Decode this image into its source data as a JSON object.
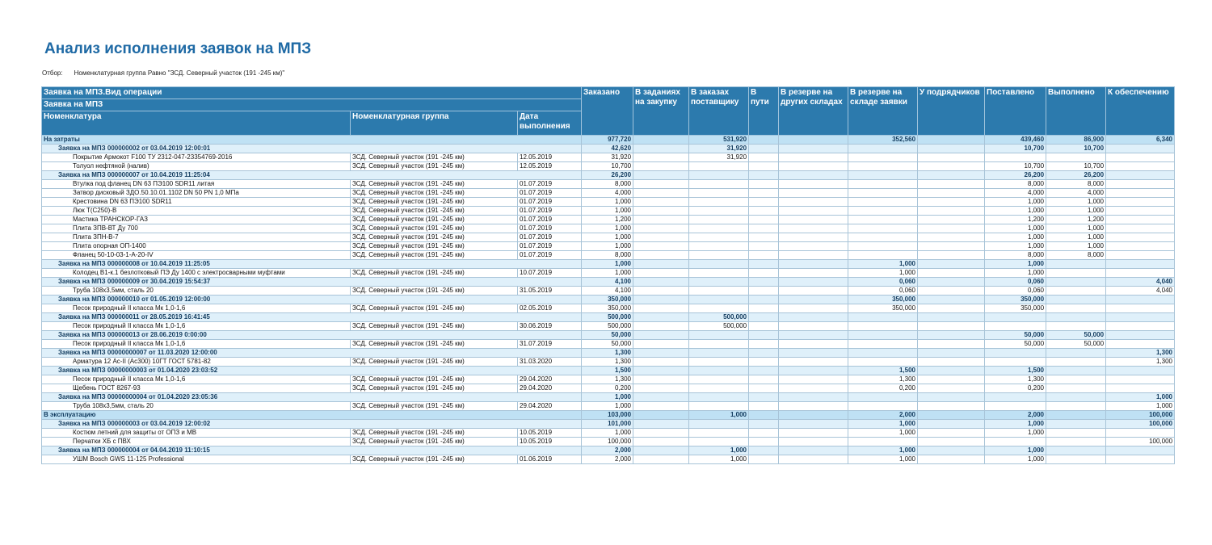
{
  "header": {
    "title": "Анализ исполнения заявок на МПЗ",
    "filter_label": "Отбор:",
    "filter_value": "Номенклатурная группа Равно \"ЗСД. Северный участок (191 -245 км)\""
  },
  "table": {
    "header": {
      "operation": "Заявка на МПЗ.Вид операции",
      "request": "Заявка на МПЗ",
      "columns": [
        "Номенклатура",
        "Номенклатурная группа",
        "Дата выполнения",
        "Заказано",
        "В заданиях на закупку",
        "В заказах поставщику",
        "В пути",
        "В резерве на других складах",
        "В резерве на складе заявки",
        "У подрядчиков",
        "Поставлено",
        "Выполнено",
        "К обеспечению"
      ]
    },
    "rows": [
      {
        "level": 0,
        "cells": [
          "На затраты",
          null,
          null,
          "977,720",
          null,
          "531,920",
          null,
          null,
          "352,560",
          null,
          "439,460",
          "86,900",
          "6,340"
        ]
      },
      {
        "level": 1,
        "cells": [
          "Заявка на МПЗ 000000002 от 03.04.2019 12:00:01",
          null,
          null,
          "42,620",
          null,
          "31,920",
          null,
          null,
          null,
          null,
          "10,700",
          "10,700",
          null
        ]
      },
      {
        "level": 2,
        "cells": [
          "Покрытие Армокот F100 ТУ 2312-047-23354769-2016",
          "ЗСД. Северный участок (191 -245 км)",
          "12.05.2019",
          "31,920",
          null,
          "31,920",
          null,
          null,
          null,
          null,
          null,
          null,
          null
        ]
      },
      {
        "level": 2,
        "cells": [
          "Толуол нефтяной (налив)",
          "ЗСД. Северный участок (191 -245 км)",
          "12.05.2019",
          "10,700",
          null,
          null,
          null,
          null,
          null,
          null,
          "10,700",
          "10,700",
          null
        ]
      },
      {
        "level": 1,
        "cells": [
          "Заявка на МПЗ 000000007 от 10.04.2019 11:25:04",
          null,
          null,
          "26,200",
          null,
          null,
          null,
          null,
          null,
          null,
          "26,200",
          "26,200",
          null
        ]
      },
      {
        "level": 2,
        "cells": [
          "Втулка под фланец DN 63 ПЭ100 SDR11 литая",
          "ЗСД. Северный участок (191 -245 км)",
          "01.07.2019",
          "8,000",
          null,
          null,
          null,
          null,
          null,
          null,
          "8,000",
          "8,000",
          null
        ]
      },
      {
        "level": 2,
        "cells": [
          "Затвор дисковый ЗДО.50.10.01.1102 DN 50 PN 1,0 МПа",
          "ЗСД. Северный участок (191 -245 км)",
          "01.07.2019",
          "4,000",
          null,
          null,
          null,
          null,
          null,
          null,
          "4,000",
          "4,000",
          null
        ]
      },
      {
        "level": 2,
        "cells": [
          "Крестовина DN 63 ПЭ100 SDR11",
          "ЗСД. Северный участок (191 -245 км)",
          "01.07.2019",
          "1,000",
          null,
          null,
          null,
          null,
          null,
          null,
          "1,000",
          "1,000",
          null
        ]
      },
      {
        "level": 2,
        "cells": [
          "Люк Т(С250)-В",
          "ЗСД. Северный участок (191 -245 км)",
          "01.07.2019",
          "1,000",
          null,
          null,
          null,
          null,
          null,
          null,
          "1,000",
          "1,000",
          null
        ]
      },
      {
        "level": 2,
        "cells": [
          "Мастика ТРАНСКОР-ГАЗ",
          "ЗСД. Северный участок (191 -245 км)",
          "01.07.2019",
          "1,200",
          null,
          null,
          null,
          null,
          null,
          null,
          "1,200",
          "1,200",
          null
        ]
      },
      {
        "level": 2,
        "cells": [
          "Плита ЗПВ-ВТ Ду 700",
          "ЗСД. Северный участок (191 -245 км)",
          "01.07.2019",
          "1,000",
          null,
          null,
          null,
          null,
          null,
          null,
          "1,000",
          "1,000",
          null
        ]
      },
      {
        "level": 2,
        "cells": [
          "Плита ЗПН-В-7",
          "ЗСД. Северный участок (191 -245 км)",
          "01.07.2019",
          "1,000",
          null,
          null,
          null,
          null,
          null,
          null,
          "1,000",
          "1,000",
          null
        ]
      },
      {
        "level": 2,
        "cells": [
          "Плита опорная ОП-1400",
          "ЗСД. Северный участок (191 -245 км)",
          "01.07.2019",
          "1,000",
          null,
          null,
          null,
          null,
          null,
          null,
          "1,000",
          "1,000",
          null
        ]
      },
      {
        "level": 2,
        "cells": [
          "Фланец 50-10-03-1-А-20-IV",
          "ЗСД. Северный участок (191 -245 км)",
          "01.07.2019",
          "8,000",
          null,
          null,
          null,
          null,
          null,
          null,
          "8,000",
          "8,000",
          null
        ]
      },
      {
        "level": 1,
        "cells": [
          "Заявка на МПЗ 000000008 от 10.04.2019 11:25:05",
          null,
          null,
          "1,000",
          null,
          null,
          null,
          null,
          "1,000",
          null,
          "1,000",
          null,
          null
        ]
      },
      {
        "level": 2,
        "cells": [
          "Колодец В1-к.1 безлотковый ПЭ Ду 1400 с электросварными муфтами",
          "ЗСД. Северный участок (191 -245 км)",
          "10.07.2019",
          "1,000",
          null,
          null,
          null,
          null,
          "1,000",
          null,
          "1,000",
          null,
          null
        ]
      },
      {
        "level": 1,
        "cells": [
          "Заявка на МПЗ 000000009 от 30.04.2019 15:54:37",
          null,
          null,
          "4,100",
          null,
          null,
          null,
          null,
          "0,060",
          null,
          "0,060",
          null,
          "4,040"
        ]
      },
      {
        "level": 2,
        "cells": [
          "Труба 108х3,5мм, сталь 20",
          "ЗСД. Северный участок (191 -245 км)",
          "31.05.2019",
          "4,100",
          null,
          null,
          null,
          null,
          "0,060",
          null,
          "0,060",
          null,
          "4,040"
        ]
      },
      {
        "level": 1,
        "cells": [
          "Заявка на МПЗ 000000010 от 01.05.2019 12:00:00",
          null,
          null,
          "350,000",
          null,
          null,
          null,
          null,
          "350,000",
          null,
          "350,000",
          null,
          null
        ]
      },
      {
        "level": 2,
        "cells": [
          "Песок природный II класса Мк 1,0-1,6",
          "ЗСД. Северный участок (191 -245 км)",
          "02.05.2019",
          "350,000",
          null,
          null,
          null,
          null,
          "350,000",
          null,
          "350,000",
          null,
          null
        ]
      },
      {
        "level": 1,
        "cells": [
          "Заявка на МПЗ 000000011 от 28.05.2019 16:41:45",
          null,
          null,
          "500,000",
          null,
          "500,000",
          null,
          null,
          null,
          null,
          null,
          null,
          null
        ]
      },
      {
        "level": 2,
        "cells": [
          "Песок природный II класса Мк 1,0-1,6",
          "ЗСД. Северный участок (191 -245 км)",
          "30.06.2019",
          "500,000",
          null,
          "500,000",
          null,
          null,
          null,
          null,
          null,
          null,
          null
        ]
      },
      {
        "level": 1,
        "cells": [
          "Заявка на МПЗ 000000013 от 28.06.2019 0:00:00",
          null,
          null,
          "50,000",
          null,
          null,
          null,
          null,
          null,
          null,
          "50,000",
          "50,000",
          null
        ]
      },
      {
        "level": 2,
        "cells": [
          "Песок природный II класса Мк 1,0-1,6",
          "ЗСД. Северный участок (191 -245 км)",
          "31.07.2019",
          "50,000",
          null,
          null,
          null,
          null,
          null,
          null,
          "50,000",
          "50,000",
          null
        ]
      },
      {
        "level": 1,
        "cells": [
          "Заявка на МПЗ 00000000007 от 11.03.2020 12:00:00",
          null,
          null,
          "1,300",
          null,
          null,
          null,
          null,
          null,
          null,
          null,
          null,
          "1,300"
        ]
      },
      {
        "level": 2,
        "cells": [
          "Арматура 12 Ас-II (Ас300) 10ГТ ГОСТ 5781-82",
          "ЗСД. Северный участок (191 -245 км)",
          "31.03.2020",
          "1,300",
          null,
          null,
          null,
          null,
          null,
          null,
          null,
          null,
          "1,300"
        ]
      },
      {
        "level": 1,
        "cells": [
          "Заявка на МПЗ 00000000003 от 01.04.2020 23:03:52",
          null,
          null,
          "1,500",
          null,
          null,
          null,
          null,
          "1,500",
          null,
          "1,500",
          null,
          null
        ]
      },
      {
        "level": 2,
        "cells": [
          "Песок природный II класса Мк 1,0-1,6",
          "ЗСД. Северный участок (191 -245 км)",
          "29.04.2020",
          "1,300",
          null,
          null,
          null,
          null,
          "1,300",
          null,
          "1,300",
          null,
          null
        ]
      },
      {
        "level": 2,
        "cells": [
          "Щебень ГОСТ 8267-93",
          "ЗСД. Северный участок (191 -245 км)",
          "29.04.2020",
          "0,200",
          null,
          null,
          null,
          null,
          "0,200",
          null,
          "0,200",
          null,
          null
        ]
      },
      {
        "level": 1,
        "cells": [
          "Заявка на МПЗ 00000000004 от 01.04.2020 23:05:36",
          null,
          null,
          "1,000",
          null,
          null,
          null,
          null,
          null,
          null,
          null,
          null,
          "1,000"
        ]
      },
      {
        "level": 2,
        "cells": [
          "Труба 108х3,5мм, сталь 20",
          "ЗСД. Северный участок (191 -245 км)",
          "29.04.2020",
          "1,000",
          null,
          null,
          null,
          null,
          null,
          null,
          null,
          null,
          "1,000"
        ]
      },
      {
        "level": 0,
        "cells": [
          "В эксплуатацию",
          null,
          null,
          "103,000",
          null,
          "1,000",
          null,
          null,
          "2,000",
          null,
          "2,000",
          null,
          "100,000"
        ]
      },
      {
        "level": 1,
        "cells": [
          "Заявка на МПЗ 000000003 от 03.04.2019 12:00:02",
          null,
          null,
          "101,000",
          null,
          null,
          null,
          null,
          "1,000",
          null,
          "1,000",
          null,
          "100,000"
        ]
      },
      {
        "level": 2,
        "cells": [
          "Костюм летний для защиты от ОПЗ и МВ",
          "ЗСД. Северный участок (191 -245 км)",
          "10.05.2019",
          "1,000",
          null,
          null,
          null,
          null,
          "1,000",
          null,
          "1,000",
          null,
          null
        ]
      },
      {
        "level": 2,
        "cells": [
          "Перчатки ХБ с ПВХ",
          "ЗСД. Северный участок (191 -245 км)",
          "10.05.2019",
          "100,000",
          null,
          null,
          null,
          null,
          null,
          null,
          null,
          null,
          "100,000"
        ]
      },
      {
        "level": 1,
        "cells": [
          "Заявка на МПЗ 000000004 от 04.04.2019 11:10:15",
          null,
          null,
          "2,000",
          null,
          "1,000",
          null,
          null,
          "1,000",
          null,
          "1,000",
          null,
          null
        ]
      },
      {
        "level": 2,
        "cells": [
          "УШМ Bosch GWS 11-125 Professional",
          "ЗСД. Северный участок (191 -245 км)",
          "01.06.2019",
          "2,000",
          null,
          "1,000",
          null,
          null,
          "1,000",
          null,
          "1,000",
          null,
          null
        ]
      }
    ]
  }
}
